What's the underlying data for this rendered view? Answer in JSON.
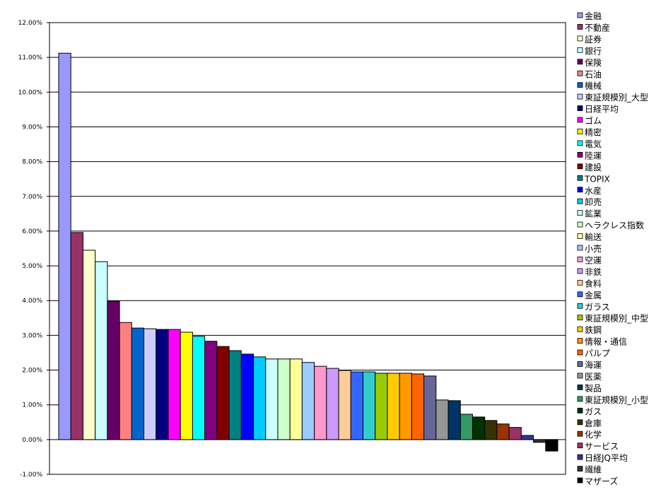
{
  "chart_data": {
    "type": "bar",
    "title": "",
    "xlabel": "",
    "ylabel": "",
    "ylim": [
      -1,
      12
    ],
    "yticks": [
      "12.00%",
      "11.00%",
      "10.00%",
      "9.00%",
      "8.00%",
      "7.00%",
      "6.00%",
      "5.00%",
      "4.00%",
      "3.00%",
      "2.00%",
      "1.00%",
      "0.00%",
      "-1.00%"
    ],
    "grid": true,
    "legend_position": "right",
    "categories": [
      "金融",
      "不動産",
      "証券",
      "銀行",
      "保険",
      "石油",
      "機械",
      "東証規模別_大型",
      "日経平均",
      "ゴム",
      "精密",
      "電気",
      "陸運",
      "建設",
      "TOPIX",
      "水産",
      "卸売",
      "鉱業",
      "ヘラクレス指数",
      "輸送",
      "小売",
      "空運",
      "非鉄",
      "食料",
      "金属",
      "ガラス",
      "東証規模別_中型",
      "鉄鋼",
      "情報・通信",
      "パルプ",
      "海運",
      "医薬",
      "製品",
      "東証規模別_小型",
      "ガス",
      "倉庫",
      "化学",
      "サービス",
      "日経JQ平均",
      "繊維",
      "マザーズ"
    ],
    "values": [
      11.12,
      5.96,
      5.45,
      5.12,
      3.98,
      3.37,
      3.21,
      3.19,
      3.17,
      3.17,
      3.09,
      2.97,
      2.83,
      2.68,
      2.56,
      2.46,
      2.38,
      2.32,
      2.32,
      2.32,
      2.22,
      2.11,
      2.05,
      1.99,
      1.95,
      1.95,
      1.91,
      1.91,
      1.91,
      1.89,
      1.83,
      1.14,
      1.12,
      0.73,
      0.65,
      0.55,
      0.45,
      0.35,
      0.12,
      -0.08,
      -0.33
    ],
    "colors": [
      "#9999FF",
      "#993366",
      "#FFFFCC",
      "#CCFFFF",
      "#660066",
      "#FF8080",
      "#0066CC",
      "#CCCCFF",
      "#000080",
      "#FF00FF",
      "#FFFF00",
      "#00FFFF",
      "#800080",
      "#800000",
      "#008080",
      "#0000FF",
      "#00CCFF",
      "#CCFFFF",
      "#CCFFCC",
      "#FFFF99",
      "#99CCFF",
      "#FF99CC",
      "#CC99FF",
      "#FFCC99",
      "#3366FF",
      "#33CCCC",
      "#99CC00",
      "#FFCC00",
      "#FF9900",
      "#FF6600",
      "#666699",
      "#969696",
      "#003366",
      "#339966",
      "#003300",
      "#333300",
      "#993300",
      "#993366",
      "#333399",
      "#333333",
      "#000000"
    ]
  }
}
